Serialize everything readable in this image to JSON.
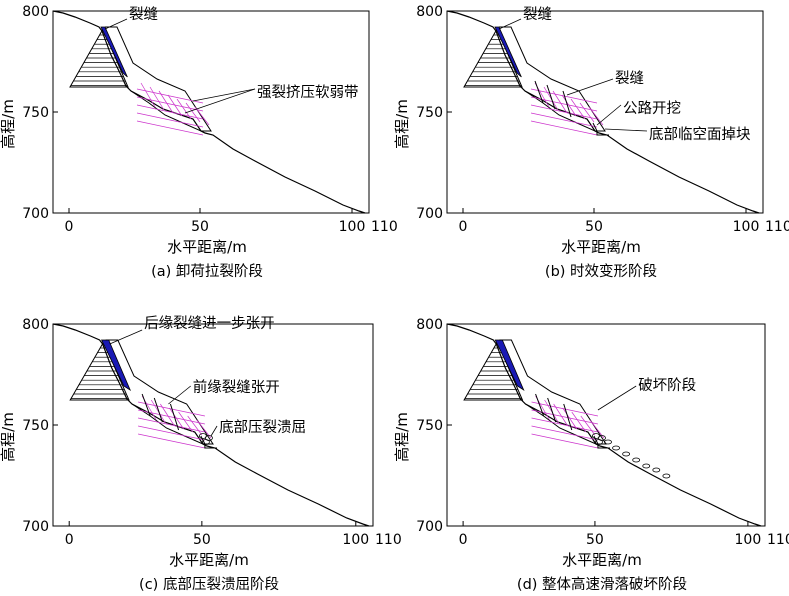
{
  "panels": [
    {
      "caption": "(a)  卸荷拉裂阶段",
      "xlabel": "水平距离/m",
      "ylabel": "高程/m",
      "xticks": [
        "0",
        "50",
        "100",
        "110"
      ],
      "yticks": [
        "800",
        "750",
        "700"
      ],
      "annotations": [
        "裂缝",
        "强裂挤压软弱带"
      ]
    },
    {
      "caption": "(b)  时效变形阶段",
      "xlabel": "水平距离/m",
      "ylabel": "高程/m",
      "xticks": [
        "0",
        "50",
        "100",
        "110"
      ],
      "yticks": [
        "800",
        "750",
        "700"
      ],
      "annotations": [
        "裂缝",
        "裂缝",
        "公路开挖",
        "底部临空面掉块"
      ]
    },
    {
      "caption": "(c)  底部压裂溃屈阶段",
      "xlabel": "水平距离/m",
      "ylabel": "高程/m",
      "xticks": [
        "0",
        "50",
        "100",
        "110"
      ],
      "yticks": [
        "800",
        "750",
        "700"
      ],
      "annotations": [
        "后缘裂缝进一步张开",
        "前缘裂缝张开",
        "底部压裂溃屈"
      ]
    },
    {
      "caption": "(d)  整体高速滑落破坏阶段",
      "xlabel": "水平距离/m",
      "ylabel": "高程/m",
      "xticks": [
        "0",
        "50",
        "100",
        "110"
      ],
      "yticks": [
        "800",
        "750",
        "700"
      ],
      "annotations": [
        "破坏阶段"
      ]
    }
  ],
  "colors": {
    "crack_fill": "#1a1ab4",
    "weak_zone": "#cc33cc",
    "line": "#000000"
  }
}
